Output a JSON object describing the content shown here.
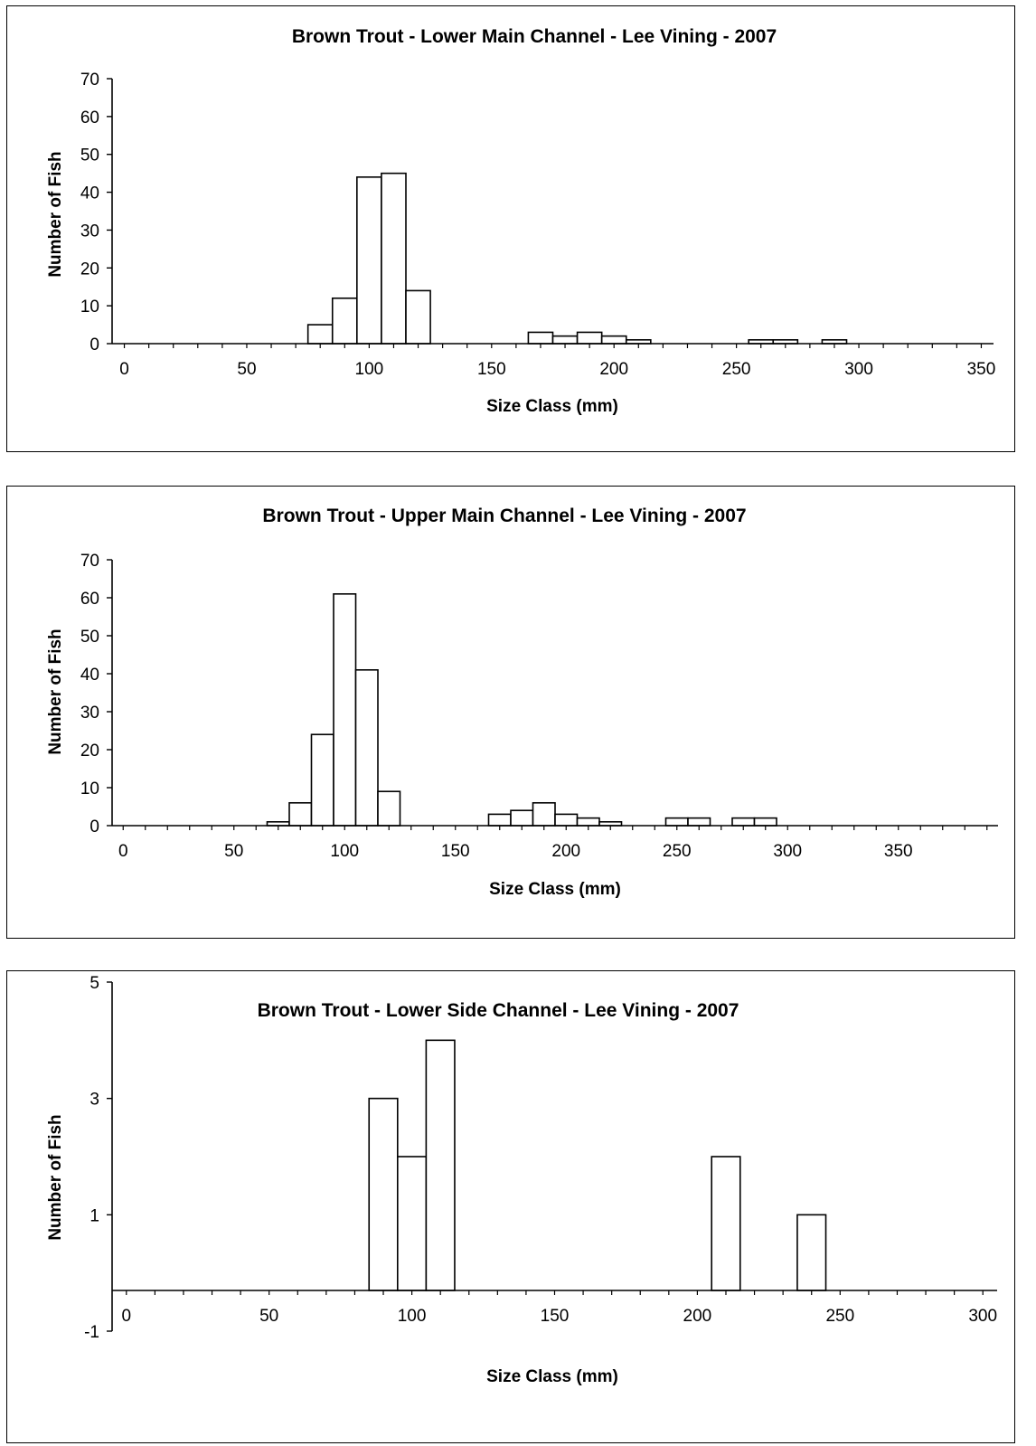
{
  "chart_data": [
    {
      "type": "bar",
      "title": "Brown Trout - Lower Main Channel - Lee Vining - 2007",
      "xlabel": "Size Class (mm)",
      "ylabel": "Number of Fish",
      "xlim": [
        -5,
        355
      ],
      "ylim": [
        0,
        70
      ],
      "xticks": [
        "0",
        "50",
        "100",
        "150",
        "200",
        "250",
        "300",
        "350"
      ],
      "yticks": [
        "0",
        "10",
        "20",
        "30",
        "40",
        "50",
        "60",
        "70"
      ],
      "bin_width": 10,
      "bins": [
        {
          "x": 80,
          "value": 5
        },
        {
          "x": 90,
          "value": 12
        },
        {
          "x": 100,
          "value": 44
        },
        {
          "x": 110,
          "value": 45
        },
        {
          "x": 120,
          "value": 14
        },
        {
          "x": 170,
          "value": 3
        },
        {
          "x": 180,
          "value": 2
        },
        {
          "x": 190,
          "value": 3
        },
        {
          "x": 200,
          "value": 2
        },
        {
          "x": 210,
          "value": 1
        },
        {
          "x": 260,
          "value": 1
        },
        {
          "x": 270,
          "value": 1
        },
        {
          "x": 290,
          "value": 1
        }
      ],
      "grid": false,
      "legend": "none"
    },
    {
      "type": "bar",
      "title": "Brown Trout - Upper Main Channel - Lee Vining - 2007",
      "xlabel": "Size Class (mm)",
      "ylabel": "Number of Fish",
      "xlim": [
        -5,
        395
      ],
      "ylim": [
        0,
        70
      ],
      "xticks": [
        "0",
        "50",
        "100",
        "150",
        "200",
        "250",
        "300",
        "350"
      ],
      "yticks": [
        "0",
        "10",
        "20",
        "30",
        "40",
        "50",
        "60",
        "70"
      ],
      "bin_width": 10,
      "bins": [
        {
          "x": 70,
          "value": 1
        },
        {
          "x": 80,
          "value": 6
        },
        {
          "x": 90,
          "value": 24
        },
        {
          "x": 100,
          "value": 61
        },
        {
          "x": 110,
          "value": 41
        },
        {
          "x": 120,
          "value": 9
        },
        {
          "x": 170,
          "value": 3
        },
        {
          "x": 180,
          "value": 4
        },
        {
          "x": 190,
          "value": 6
        },
        {
          "x": 200,
          "value": 3
        },
        {
          "x": 210,
          "value": 2
        },
        {
          "x": 220,
          "value": 1
        },
        {
          "x": 250,
          "value": 2
        },
        {
          "x": 260,
          "value": 2
        },
        {
          "x": 280,
          "value": 2
        },
        {
          "x": 290,
          "value": 2
        }
      ],
      "grid": false,
      "legend": "none"
    },
    {
      "type": "bar",
      "title": "Brown Trout - Lower Side Channel - Lee Vining - 2007",
      "xlabel": "Size Class (mm)",
      "ylabel": "Number of Fish",
      "xlim": [
        -5,
        305
      ],
      "ylim": [
        -1,
        5
      ],
      "xticks": [
        "0",
        "50",
        "100",
        "150",
        "200",
        "250",
        "300"
      ],
      "yticks": [
        "-1",
        "1",
        "3",
        "5"
      ],
      "bin_width": 10,
      "bins": [
        {
          "x": 90,
          "value": 3
        },
        {
          "x": 100,
          "value": 2
        },
        {
          "x": 110,
          "value": 4
        },
        {
          "x": 210,
          "value": 2
        },
        {
          "x": 240,
          "value": 1
        }
      ],
      "grid": false,
      "legend": "none"
    }
  ]
}
